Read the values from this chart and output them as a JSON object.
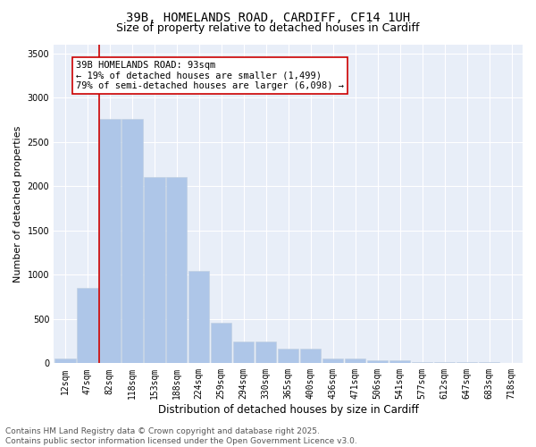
{
  "title_line1": "39B, HOMELANDS ROAD, CARDIFF, CF14 1UH",
  "title_line2": "Size of property relative to detached houses in Cardiff",
  "xlabel": "Distribution of detached houses by size in Cardiff",
  "ylabel": "Number of detached properties",
  "categories": [
    "12sqm",
    "47sqm",
    "82sqm",
    "118sqm",
    "153sqm",
    "188sqm",
    "224sqm",
    "259sqm",
    "294sqm",
    "330sqm",
    "365sqm",
    "400sqm",
    "436sqm",
    "471sqm",
    "506sqm",
    "541sqm",
    "577sqm",
    "612sqm",
    "647sqm",
    "683sqm",
    "718sqm"
  ],
  "values": [
    50,
    850,
    2760,
    2760,
    2100,
    2100,
    1040,
    460,
    250,
    250,
    160,
    160,
    55,
    55,
    35,
    35,
    18,
    18,
    10,
    10,
    5
  ],
  "bar_color": "#aec6e8",
  "bar_edge_color": "#aec6e8",
  "vline_color": "#cc0000",
  "annotation_text": "39B HOMELANDS ROAD: 93sqm\n← 19% of detached houses are smaller (1,499)\n79% of semi-detached houses are larger (6,098) →",
  "annotation_box_color": "#ffffff",
  "annotation_box_edge_color": "#cc0000",
  "ylim": [
    0,
    3600
  ],
  "yticks": [
    0,
    500,
    1000,
    1500,
    2000,
    2500,
    3000,
    3500
  ],
  "background_color": "#e8eef8",
  "grid_color": "#ffffff",
  "footer_line1": "Contains HM Land Registry data © Crown copyright and database right 2025.",
  "footer_line2": "Contains public sector information licensed under the Open Government Licence v3.0.",
  "title_fontsize": 10,
  "subtitle_fontsize": 9,
  "ylabel_fontsize": 8,
  "xlabel_fontsize": 8.5,
  "tick_fontsize": 7,
  "annotation_fontsize": 7.5,
  "footer_fontsize": 6.5
}
